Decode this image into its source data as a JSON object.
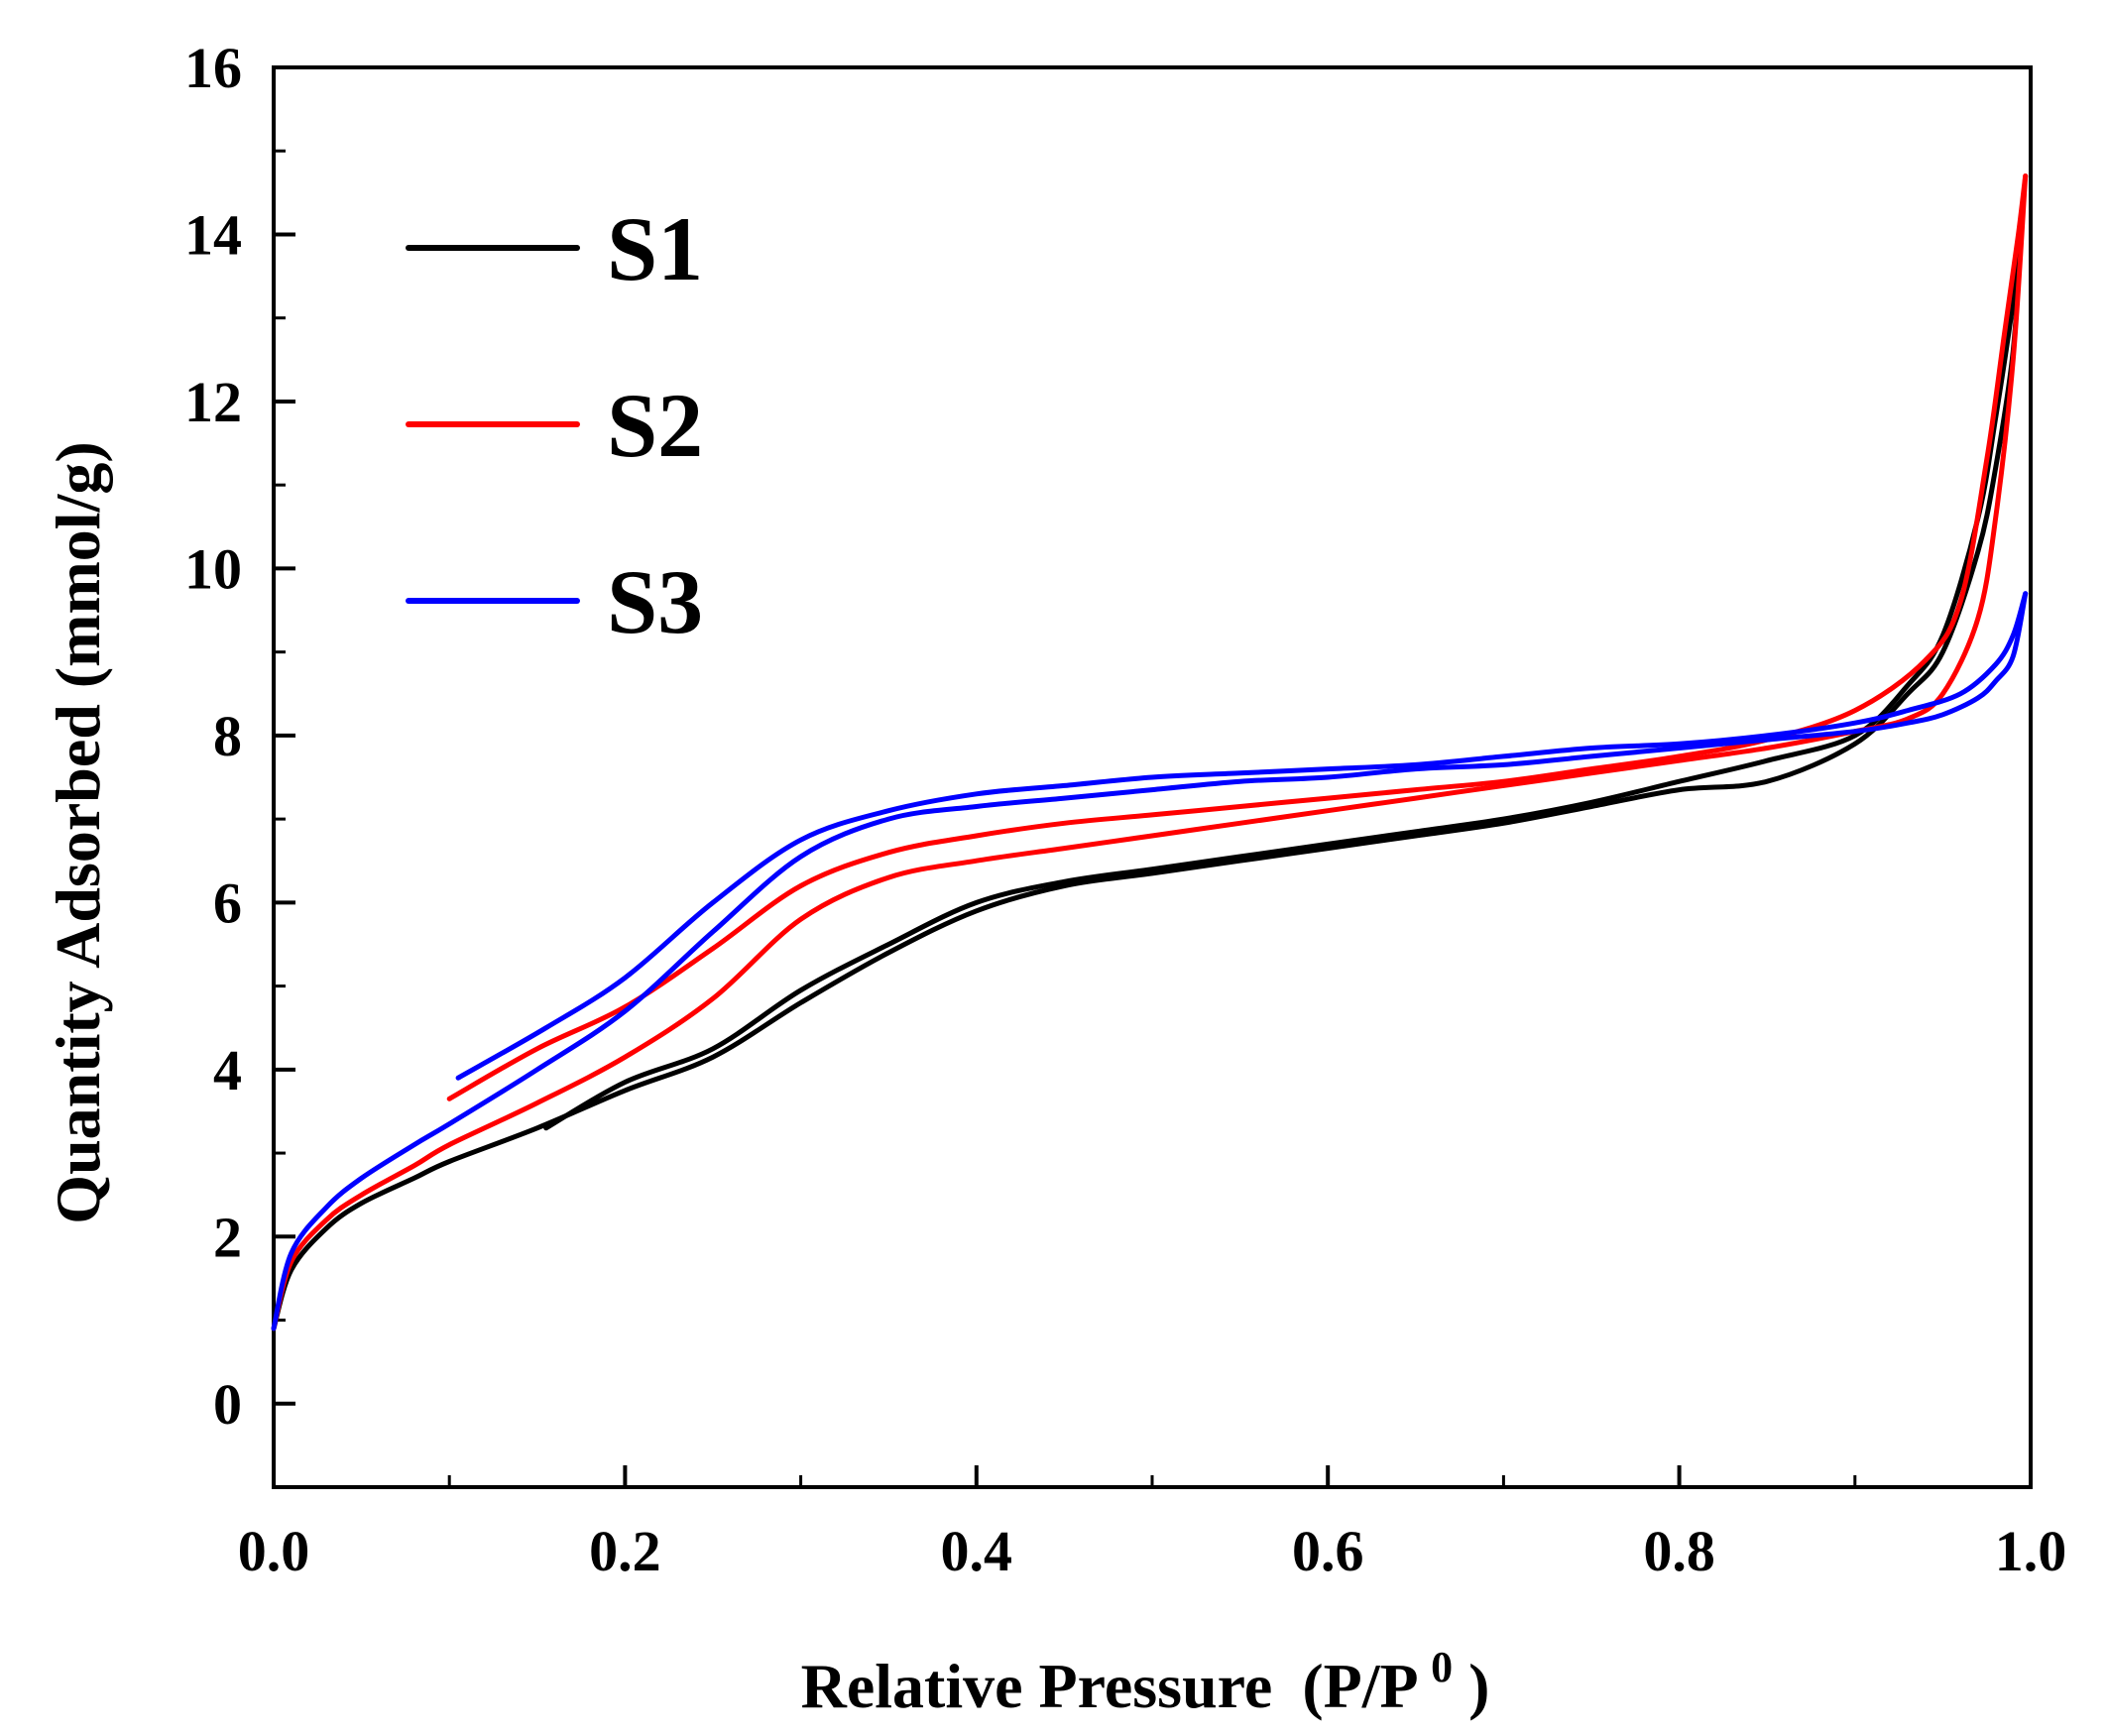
{
  "chart_data": {
    "type": "line",
    "title": "",
    "xlabel": "Relative Pressure",
    "xlabel_unit": "(P/P",
    "xlabel_unit_sup": "0",
    "xlabel_unit_close": ")",
    "ylabel": "Quantity Adsorbed (mmol/g)",
    "xlim": [
      0.0,
      1.0
    ],
    "ylim": [
      -1,
      16
    ],
    "xticks": [
      0.0,
      0.2,
      0.4,
      0.6,
      0.8,
      1.0
    ],
    "xtick_labels": [
      "0.0",
      "0.2",
      "0.4",
      "0.6",
      "0.8",
      "1.0"
    ],
    "yticks": [
      0,
      2,
      4,
      6,
      8,
      10,
      12,
      14,
      16
    ],
    "ytick_labels": [
      "0",
      "2",
      "4",
      "6",
      "8",
      "10",
      "12",
      "14",
      "16"
    ],
    "legend_position": "top-left",
    "grid": false,
    "series": [
      {
        "name": "S1",
        "color": "#000000",
        "adsorption": {
          "x": [
            0.0,
            0.01,
            0.03,
            0.05,
            0.08,
            0.1,
            0.15,
            0.2,
            0.25,
            0.3,
            0.35,
            0.4,
            0.45,
            0.5,
            0.55,
            0.6,
            0.65,
            0.7,
            0.75,
            0.8,
            0.85,
            0.9,
            0.93,
            0.95,
            0.97,
            0.98,
            0.99,
            0.995
          ],
          "y": [
            0.9,
            1.6,
            2.1,
            2.4,
            2.7,
            2.9,
            3.3,
            3.75,
            4.15,
            4.8,
            5.4,
            5.9,
            6.2,
            6.35,
            6.5,
            6.65,
            6.8,
            6.95,
            7.15,
            7.35,
            7.45,
            7.9,
            8.5,
            9.0,
            10.2,
            11.2,
            12.6,
            14.2
          ]
        },
        "desorption": {
          "x": [
            0.995,
            0.99,
            0.98,
            0.97,
            0.95,
            0.93,
            0.9,
            0.85,
            0.8,
            0.75,
            0.7,
            0.65,
            0.6,
            0.55,
            0.5,
            0.45,
            0.4,
            0.35,
            0.3,
            0.25,
            0.2,
            0.155
          ],
          "y": [
            14.2,
            13.2,
            11.8,
            10.6,
            9.2,
            8.6,
            8.0,
            7.7,
            7.45,
            7.2,
            7.0,
            6.85,
            6.7,
            6.55,
            6.4,
            6.25,
            6.0,
            5.5,
            4.95,
            4.25,
            3.85,
            3.3
          ]
        }
      },
      {
        "name": "S2",
        "color": "#ff0000",
        "adsorption": {
          "x": [
            0.0,
            0.01,
            0.03,
            0.05,
            0.08,
            0.1,
            0.15,
            0.2,
            0.25,
            0.3,
            0.35,
            0.4,
            0.45,
            0.5,
            0.55,
            0.6,
            0.65,
            0.7,
            0.75,
            0.8,
            0.85,
            0.9,
            0.93,
            0.95,
            0.97,
            0.98,
            0.99,
            0.997
          ],
          "y": [
            0.9,
            1.7,
            2.2,
            2.5,
            2.85,
            3.1,
            3.6,
            4.15,
            4.85,
            5.8,
            6.3,
            6.5,
            6.65,
            6.8,
            6.95,
            7.1,
            7.25,
            7.4,
            7.55,
            7.7,
            7.85,
            8.05,
            8.2,
            8.5,
            9.4,
            10.6,
            12.5,
            14.7
          ]
        },
        "desorption": {
          "x": [
            0.997,
            0.993,
            0.985,
            0.975,
            0.96,
            0.94,
            0.9,
            0.85,
            0.8,
            0.75,
            0.7,
            0.65,
            0.6,
            0.55,
            0.5,
            0.45,
            0.4,
            0.35,
            0.3,
            0.25,
            0.2,
            0.15,
            0.1
          ],
          "y": [
            14.7,
            14.0,
            12.8,
            11.3,
            9.6,
            8.9,
            8.3,
            7.95,
            7.75,
            7.6,
            7.45,
            7.35,
            7.25,
            7.15,
            7.05,
            6.95,
            6.8,
            6.6,
            6.2,
            5.45,
            4.75,
            4.25,
            3.65
          ]
        }
      },
      {
        "name": "S3",
        "color": "#0000ff",
        "adsorption": {
          "x": [
            0.0,
            0.01,
            0.03,
            0.05,
            0.08,
            0.1,
            0.15,
            0.2,
            0.25,
            0.3,
            0.35,
            0.4,
            0.45,
            0.5,
            0.55,
            0.6,
            0.65,
            0.7,
            0.75,
            0.8,
            0.85,
            0.9,
            0.93,
            0.95,
            0.97,
            0.98,
            0.99,
            0.997
          ],
          "y": [
            0.9,
            1.8,
            2.35,
            2.7,
            3.1,
            3.35,
            4.0,
            4.7,
            5.65,
            6.55,
            7.0,
            7.15,
            7.25,
            7.35,
            7.45,
            7.5,
            7.6,
            7.65,
            7.75,
            7.85,
            7.95,
            8.05,
            8.15,
            8.25,
            8.45,
            8.65,
            8.95,
            9.7
          ]
        },
        "desorption": {
          "x": [
            0.997,
            0.99,
            0.98,
            0.96,
            0.93,
            0.9,
            0.85,
            0.8,
            0.75,
            0.7,
            0.65,
            0.6,
            0.55,
            0.5,
            0.45,
            0.4,
            0.35,
            0.3,
            0.25,
            0.2,
            0.155,
            0.105
          ],
          "y": [
            9.7,
            9.2,
            8.85,
            8.5,
            8.3,
            8.15,
            8.0,
            7.9,
            7.85,
            7.75,
            7.65,
            7.6,
            7.55,
            7.5,
            7.4,
            7.3,
            7.1,
            6.75,
            6.0,
            5.1,
            4.5,
            3.9
          ]
        }
      }
    ]
  }
}
